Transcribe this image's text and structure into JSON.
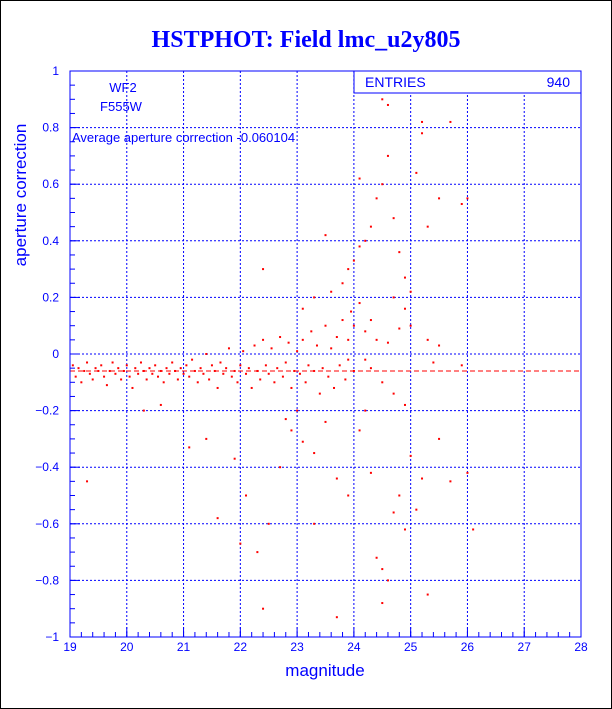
{
  "chart_data": {
    "type": "scatter",
    "title": "HSTPHOT: Field lmc_u2y805",
    "xlabel": "magnitude",
    "ylabel": "aperture correction",
    "xlim": [
      19,
      28
    ],
    "ylim": [
      -1,
      1
    ],
    "x_ticks": [
      "19",
      "20",
      "21",
      "22",
      "23",
      "24",
      "25",
      "26",
      "27",
      "28"
    ],
    "y_ticks": [
      "-1",
      "-0.8",
      "-0.6",
      "-0.4",
      "-0.2",
      "0",
      "0.2",
      "0.4",
      "0.6",
      "0.8",
      "1"
    ],
    "grid": true,
    "annotations": {
      "chip": "WF2",
      "filter": "F555W",
      "average_text": "Average aperture correction -0.060104"
    },
    "stats": {
      "label": "ENTRIES",
      "value": "940"
    },
    "average_line": -0.060104,
    "colors": {
      "frame": "#0000ff",
      "points": "#ff0000",
      "title": "#0000ff"
    },
    "series": [
      {
        "values": [
          [
            19.05,
            -0.04
          ],
          [
            19.1,
            -0.08
          ],
          [
            19.15,
            -0.05
          ],
          [
            19.2,
            -0.1
          ],
          [
            19.25,
            -0.06
          ],
          [
            19.3,
            -0.03
          ],
          [
            19.35,
            -0.07
          ],
          [
            19.4,
            -0.09
          ],
          [
            19.45,
            -0.05
          ],
          [
            19.5,
            -0.06
          ],
          [
            19.55,
            -0.04
          ],
          [
            19.6,
            -0.08
          ],
          [
            19.65,
            -0.11
          ],
          [
            19.7,
            -0.06
          ],
          [
            19.75,
            -0.03
          ],
          [
            19.8,
            -0.07
          ],
          [
            19.85,
            -0.05
          ],
          [
            19.9,
            -0.09
          ],
          [
            19.95,
            -0.06
          ],
          [
            20.0,
            -0.04
          ],
          [
            20.05,
            -0.08
          ],
          [
            20.1,
            -0.12
          ],
          [
            20.15,
            -0.05
          ],
          [
            20.2,
            -0.07
          ],
          [
            20.25,
            -0.03
          ],
          [
            20.3,
            -0.06
          ],
          [
            20.35,
            -0.09
          ],
          [
            20.4,
            -0.05
          ],
          [
            20.45,
            -0.07
          ],
          [
            20.5,
            -0.04
          ],
          [
            20.55,
            -0.08
          ],
          [
            20.6,
            -0.06
          ],
          [
            20.65,
            -0.1
          ],
          [
            20.7,
            -0.05
          ],
          [
            20.75,
            -0.07
          ],
          [
            20.8,
            -0.03
          ],
          [
            20.85,
            -0.06
          ],
          [
            20.9,
            -0.09
          ],
          [
            20.95,
            -0.05
          ],
          [
            21.0,
            -0.07
          ],
          [
            21.05,
            -0.04
          ],
          [
            21.1,
            -0.08
          ],
          [
            21.15,
            -0.02
          ],
          [
            21.2,
            -0.06
          ],
          [
            21.25,
            -0.1
          ],
          [
            21.3,
            -0.05
          ],
          [
            21.35,
            -0.07
          ],
          [
            21.4,
            0.0
          ],
          [
            21.45,
            -0.09
          ],
          [
            21.5,
            -0.04
          ],
          [
            21.55,
            -0.06
          ],
          [
            21.6,
            -0.12
          ],
          [
            21.65,
            -0.03
          ],
          [
            21.7,
            -0.07
          ],
          [
            21.75,
            -0.05
          ],
          [
            21.8,
            0.02
          ],
          [
            21.85,
            -0.08
          ],
          [
            21.9,
            -0.06
          ],
          [
            21.95,
            -0.1
          ],
          [
            22.0,
            -0.04
          ],
          [
            22.05,
            0.01
          ],
          [
            22.1,
            -0.07
          ],
          [
            22.15,
            -0.05
          ],
          [
            22.2,
            -0.12
          ],
          [
            22.25,
            0.03
          ],
          [
            22.3,
            -0.06
          ],
          [
            22.35,
            -0.09
          ],
          [
            22.4,
            0.05
          ],
          [
            22.45,
            -0.04
          ],
          [
            22.5,
            -0.07
          ],
          [
            22.55,
            0.02
          ],
          [
            22.6,
            -0.1
          ],
          [
            22.65,
            -0.05
          ],
          [
            22.7,
            0.06
          ],
          [
            22.75,
            -0.08
          ],
          [
            22.8,
            -0.03
          ],
          [
            22.85,
            0.04
          ],
          [
            22.9,
            -0.12
          ],
          [
            22.95,
            -0.06
          ],
          [
            23.0,
            0.01
          ],
          [
            23.05,
            -0.07
          ],
          [
            23.1,
            0.05
          ],
          [
            23.15,
            -0.1
          ],
          [
            23.2,
            -0.04
          ],
          [
            23.25,
            0.08
          ],
          [
            23.3,
            -0.06
          ],
          [
            23.35,
            0.03
          ],
          [
            23.4,
            -0.14
          ],
          [
            23.45,
            -0.05
          ],
          [
            23.5,
            0.1
          ],
          [
            23.55,
            -0.08
          ],
          [
            23.6,
            0.02
          ],
          [
            23.65,
            -0.12
          ],
          [
            23.7,
            0.06
          ],
          [
            23.75,
            -0.04
          ],
          [
            23.8,
            0.12
          ],
          [
            23.85,
            -0.09
          ],
          [
            23.9,
            -0.02
          ],
          [
            23.95,
            0.15
          ],
          [
            24.0,
            -0.06
          ],
          [
            19.3,
            -0.45
          ],
          [
            20.3,
            -0.2
          ],
          [
            20.6,
            -0.18
          ],
          [
            21.1,
            -0.33
          ],
          [
            21.4,
            -0.3
          ],
          [
            21.6,
            -0.58
          ],
          [
            21.9,
            -0.37
          ],
          [
            22.1,
            -0.5
          ],
          [
            22.3,
            -0.7
          ],
          [
            22.5,
            -0.6
          ],
          [
            22.7,
            -0.4
          ],
          [
            22.8,
            -0.23
          ],
          [
            22.9,
            -0.27
          ],
          [
            23.1,
            -0.31
          ],
          [
            23.3,
            -0.35
          ],
          [
            23.5,
            -0.24
          ],
          [
            23.7,
            -0.44
          ],
          [
            23.9,
            -0.5
          ],
          [
            24.1,
            -0.27
          ],
          [
            24.3,
            -0.42
          ],
          [
            24.4,
            -0.72
          ],
          [
            24.5,
            -0.88
          ],
          [
            24.6,
            -0.8
          ],
          [
            24.7,
            -0.56
          ],
          [
            24.8,
            -0.5
          ],
          [
            24.9,
            -0.62
          ],
          [
            25.0,
            -0.36
          ],
          [
            25.1,
            -0.55
          ],
          [
            25.2,
            -0.44
          ],
          [
            25.3,
            -0.85
          ],
          [
            22.4,
            -0.9
          ],
          [
            23.7,
            -0.93
          ],
          [
            24.5,
            -0.76
          ],
          [
            25.5,
            -0.3
          ],
          [
            25.7,
            -0.45
          ],
          [
            26.0,
            -0.42
          ],
          [
            22.0,
            -0.67
          ],
          [
            23.0,
            -0.2
          ],
          [
            23.3,
            -0.6
          ],
          [
            24.2,
            -0.2
          ],
          [
            22.4,
            0.3
          ],
          [
            23.1,
            0.16
          ],
          [
            23.3,
            0.2
          ],
          [
            23.6,
            0.22
          ],
          [
            23.8,
            0.25
          ],
          [
            23.9,
            0.3
          ],
          [
            24.0,
            0.33
          ],
          [
            24.1,
            0.38
          ],
          [
            24.2,
            0.4
          ],
          [
            24.3,
            0.45
          ],
          [
            24.4,
            0.55
          ],
          [
            24.5,
            0.6
          ],
          [
            24.6,
            0.7
          ],
          [
            24.7,
            0.48
          ],
          [
            24.8,
            0.36
          ],
          [
            24.9,
            0.27
          ],
          [
            25.0,
            0.22
          ],
          [
            25.1,
            0.64
          ],
          [
            25.2,
            0.82
          ],
          [
            25.3,
            0.45
          ],
          [
            25.5,
            0.55
          ],
          [
            25.7,
            0.82
          ],
          [
            25.9,
            0.53
          ],
          [
            26.0,
            0.55
          ],
          [
            24.6,
            0.88
          ],
          [
            24.5,
            0.9
          ],
          [
            25.2,
            0.78
          ],
          [
            24.1,
            0.62
          ],
          [
            24.9,
            0.16
          ],
          [
            23.5,
            0.42
          ],
          [
            24.0,
            0.1
          ],
          [
            24.2,
            0.08
          ],
          [
            24.4,
            0.05
          ],
          [
            24.6,
            0.04
          ],
          [
            24.8,
            0.09
          ],
          [
            25.0,
            0.1
          ],
          [
            24.3,
            -0.05
          ],
          [
            24.5,
            -0.1
          ],
          [
            24.7,
            -0.14
          ],
          [
            24.9,
            -0.18
          ],
          [
            25.4,
            -0.03
          ],
          [
            25.9,
            -0.04
          ],
          [
            25.5,
            0.03
          ],
          [
            24.1,
            0.18
          ],
          [
            24.3,
            0.12
          ],
          [
            23.9,
            0.05
          ],
          [
            24.7,
            0.2
          ],
          [
            25.3,
            0.05
          ],
          [
            26.1,
            -0.62
          ],
          [
            24.2,
            -0.02
          ]
        ]
      }
    ]
  }
}
